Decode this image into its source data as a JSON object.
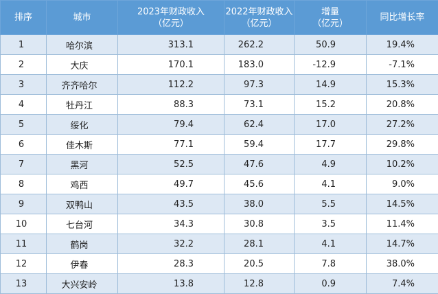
{
  "headers": {
    "rank": "排序",
    "city": "城市",
    "rev2023": [
      "2023年财政收入",
      "（亿元）"
    ],
    "rev2022": [
      "2022年财政收入",
      "（亿元）"
    ],
    "increase": [
      "增量",
      "（亿元）"
    ],
    "growth": "同比增长率"
  },
  "rows": [
    {
      "rank": "1",
      "city": "哈尔滨",
      "rev2023": "313.1",
      "rev2022": "262.2",
      "increase": "50.9",
      "growth": "19.4%"
    },
    {
      "rank": "2",
      "city": "大庆",
      "rev2023": "170.1",
      "rev2022": "183.0",
      "increase": "-12.9",
      "growth": "-7.1%"
    },
    {
      "rank": "3",
      "city": "齐齐哈尔",
      "rev2023": "112.2",
      "rev2022": "97.3",
      "increase": "14.9",
      "growth": "15.3%"
    },
    {
      "rank": "4",
      "city": "牡丹江",
      "rev2023": "88.3",
      "rev2022": "73.1",
      "increase": "15.2",
      "growth": "20.8%"
    },
    {
      "rank": "5",
      "city": "绥化",
      "rev2023": "79.4",
      "rev2022": "62.4",
      "increase": "17.0",
      "growth": "27.2%"
    },
    {
      "rank": "6",
      "city": "佳木斯",
      "rev2023": "77.1",
      "rev2022": "59.4",
      "increase": "17.7",
      "growth": "29.8%"
    },
    {
      "rank": "7",
      "city": "黑河",
      "rev2023": "52.5",
      "rev2022": "47.6",
      "increase": "4.9",
      "growth": "10.2%"
    },
    {
      "rank": "8",
      "city": "鸡西",
      "rev2023": "49.7",
      "rev2022": "45.6",
      "increase": "4.1",
      "growth": "9.0%"
    },
    {
      "rank": "9",
      "city": "双鸭山",
      "rev2023": "43.5",
      "rev2022": "38.0",
      "increase": "5.5",
      "growth": "14.5%"
    },
    {
      "rank": "10",
      "city": "七台河",
      "rev2023": "34.3",
      "rev2022": "30.8",
      "increase": "3.5",
      "growth": "11.4%"
    },
    {
      "rank": "11",
      "city": "鹤岗",
      "rev2023": "32.2",
      "rev2022": "28.1",
      "increase": "4.1",
      "growth": "14.7%"
    },
    {
      "rank": "12",
      "city": "伊春",
      "rev2023": "28.3",
      "rev2022": "20.5",
      "increase": "7.8",
      "growth": "38.0%"
    },
    {
      "rank": "13",
      "city": "大兴安岭",
      "rev2023": "13.8",
      "rev2022": "12.8",
      "increase": "0.9",
      "growth": "7.4%"
    }
  ],
  "colors": {
    "header_bg": "#5b9bd5",
    "header_text": "#ffffff",
    "row_odd_bg": "#dde8f4",
    "row_even_bg": "#ffffff",
    "grid": "#9dbcd9"
  }
}
